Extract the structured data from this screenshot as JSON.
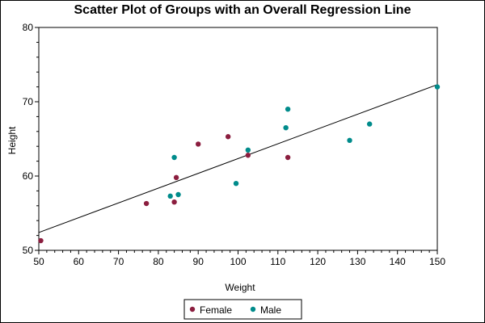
{
  "chart_data": {
    "type": "scatter",
    "title": "Scatter Plot of Groups with an Overall Regression Line",
    "xlabel": "Weight",
    "ylabel": "Height",
    "xlim": [
      50,
      150
    ],
    "ylim": [
      50,
      80
    ],
    "x_ticks": [
      50,
      60,
      70,
      80,
      90,
      100,
      110,
      120,
      130,
      140,
      150
    ],
    "y_ticks": [
      50,
      60,
      70,
      80
    ],
    "grid": false,
    "legend_position": "bottom",
    "series": [
      {
        "name": "Female",
        "color": "#8b1e3f",
        "points": [
          {
            "x": 50.5,
            "y": 51.3
          },
          {
            "x": 77,
            "y": 56.3
          },
          {
            "x": 84,
            "y": 56.5
          },
          {
            "x": 84.5,
            "y": 59.8
          },
          {
            "x": 90,
            "y": 64.3
          },
          {
            "x": 97.5,
            "y": 65.3
          },
          {
            "x": 102.5,
            "y": 62.8
          },
          {
            "x": 112.5,
            "y": 62.5
          }
        ]
      },
      {
        "name": "Male",
        "color": "#008b8b",
        "points": [
          {
            "x": 83,
            "y": 57.3
          },
          {
            "x": 84,
            "y": 62.5
          },
          {
            "x": 85,
            "y": 57.5
          },
          {
            "x": 99.5,
            "y": 59
          },
          {
            "x": 102.5,
            "y": 63.5
          },
          {
            "x": 112,
            "y": 66.5
          },
          {
            "x": 112.5,
            "y": 69
          },
          {
            "x": 128,
            "y": 64.8
          },
          {
            "x": 133,
            "y": 67
          },
          {
            "x": 150,
            "y": 72
          }
        ]
      }
    ],
    "regression_line": {
      "color": "#000000",
      "x": [
        50,
        150
      ],
      "y": [
        52.4,
        72.3
      ]
    }
  }
}
